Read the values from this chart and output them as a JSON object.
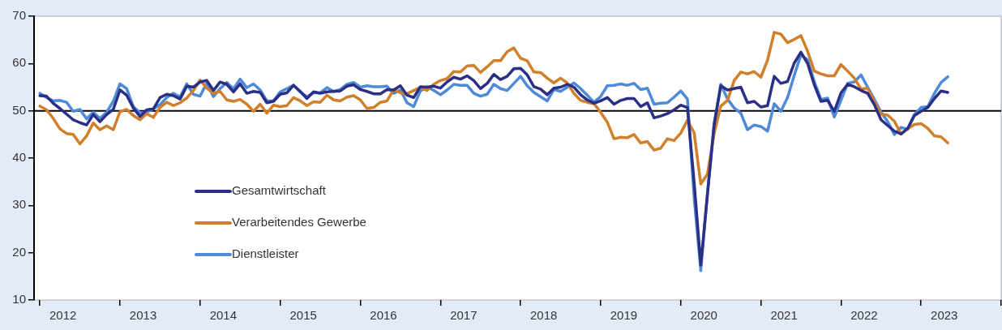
{
  "chart_data": {
    "type": "line",
    "xlim": [
      "2011-12-05",
      "2024-01-01"
    ],
    "ylim": [
      10,
      70
    ],
    "yticks": [
      10,
      20,
      30,
      40,
      50,
      60,
      70
    ],
    "xticks": [
      {
        "value": "2012-01-01",
        "label": null
      },
      {
        "value": "2012-04-15",
        "label": "2012"
      },
      {
        "value": "2013-01-01",
        "label": null
      },
      {
        "value": "2013-04-15",
        "label": "2013"
      },
      {
        "value": "2014-01-01",
        "label": null
      },
      {
        "value": "2014-04-15",
        "label": "2014"
      },
      {
        "value": "2015-01-01",
        "label": null
      },
      {
        "value": "2015-04-15",
        "label": "2015"
      },
      {
        "value": "2016-01-01",
        "label": null
      },
      {
        "value": "2016-04-15",
        "label": "2016"
      },
      {
        "value": "2017-01-01",
        "label": null
      },
      {
        "value": "2017-04-15",
        "label": "2017"
      },
      {
        "value": "2018-01-01",
        "label": null
      },
      {
        "value": "2018-04-15",
        "label": "2018"
      },
      {
        "value": "2019-01-01",
        "label": null
      },
      {
        "value": "2019-04-15",
        "label": "2019"
      },
      {
        "value": "2020-01-01",
        "label": null
      },
      {
        "value": "2020-04-15",
        "label": "2020"
      },
      {
        "value": "2021-01-01",
        "label": null
      },
      {
        "value": "2021-04-15",
        "label": "2021"
      },
      {
        "value": "2022-01-01",
        "label": null
      },
      {
        "value": "2022-04-15",
        "label": "2022"
      },
      {
        "value": "2023-01-01",
        "label": null
      },
      {
        "value": "2023-04-15",
        "label": "2023"
      },
      {
        "value": "2024-01-01",
        "label": null
      }
    ],
    "grid": false,
    "legend": "bottom left",
    "marker": "none",
    "line_style": "solid",
    "ref_lines": [
      {
        "axis": "y",
        "value": 50,
        "color": "#000000"
      }
    ],
    "series": [
      {
        "name": "Gesamtwirtschaft",
        "color": "#2b2f86",
        "values": [
          53.2,
          53.1,
          51.6,
          50.5,
          49.3,
          48.1,
          47.5,
          47.0,
          49.2,
          47.7,
          49.2,
          50.3,
          54.4,
          53.3,
          50.6,
          48.8,
          50.2,
          50.4,
          52.8,
          53.5,
          53.2,
          52.5,
          55.2,
          55.0,
          56.1,
          56.4,
          54.3,
          56.1,
          55.6,
          54.0,
          55.7,
          53.7,
          54.1,
          53.9,
          51.7,
          52.0,
          53.5,
          53.8,
          55.4,
          54.1,
          52.6,
          54.0,
          53.7,
          54.0,
          54.1,
          54.2,
          55.2,
          55.5,
          54.5,
          54.1,
          53.6,
          53.6,
          54.5,
          54.4,
          55.3,
          53.3,
          52.8,
          55.1,
          55.0,
          55.2,
          54.8,
          56.1,
          57.1,
          56.7,
          57.4,
          56.4,
          54.7,
          55.8,
          57.7,
          56.6,
          57.3,
          58.9,
          59.0,
          57.6,
          55.1,
          54.6,
          53.4,
          54.8,
          55.0,
          55.6,
          55.0,
          53.4,
          52.3,
          51.6,
          52.1,
          52.8,
          51.4,
          52.2,
          52.6,
          52.6,
          50.9,
          51.7,
          48.5,
          48.9,
          49.4,
          50.2,
          51.2,
          50.7,
          35.0,
          17.4,
          32.3,
          47.0,
          55.3,
          54.4,
          54.7,
          55.0,
          51.7,
          52.0,
          50.8,
          51.1,
          57.3,
          55.8,
          56.2,
          60.1,
          62.4,
          60.0,
          55.5,
          52.0,
          52.2,
          49.9,
          53.8,
          55.6,
          55.1,
          54.3,
          53.7,
          51.3,
          48.1,
          46.9,
          45.7,
          45.1,
          46.3,
          49.0,
          49.9,
          50.7,
          52.6,
          54.2,
          53.9
        ]
      },
      {
        "name": "Verarbeitendes Gewerbe",
        "color": "#d07f2a",
        "values": [
          51.0,
          50.2,
          48.4,
          46.2,
          45.2,
          45.0,
          43.0,
          44.7,
          47.4,
          46.0,
          46.8,
          46.0,
          49.8,
          50.3,
          49.0,
          48.1,
          49.4,
          48.6,
          50.7,
          51.8,
          51.1,
          51.7,
          52.7,
          54.3,
          56.5,
          54.8,
          53.7,
          54.1,
          52.3,
          52.0,
          52.4,
          51.4,
          49.9,
          51.4,
          49.5,
          51.2,
          50.9,
          51.1,
          52.8,
          52.1,
          51.1,
          51.9,
          51.8,
          53.3,
          52.3,
          52.1,
          52.9,
          53.2,
          52.3,
          50.5,
          50.7,
          51.8,
          52.1,
          54.5,
          53.8,
          53.6,
          54.3,
          55.0,
          54.3,
          55.6,
          56.4,
          56.8,
          58.3,
          58.2,
          59.5,
          59.6,
          58.1,
          59.3,
          60.6,
          60.6,
          62.5,
          63.3,
          61.1,
          60.6,
          58.2,
          58.1,
          56.9,
          55.9,
          56.9,
          55.9,
          53.7,
          52.2,
          51.8,
          51.5,
          49.7,
          47.6,
          44.1,
          44.4,
          44.3,
          45.0,
          43.2,
          43.5,
          41.7,
          42.1,
          44.1,
          43.7,
          45.3,
          48.0,
          45.4,
          34.5,
          36.6,
          45.2,
          51.0,
          52.2,
          56.4,
          58.2,
          57.8,
          58.3,
          57.1,
          60.7,
          66.6,
          66.2,
          64.4,
          65.1,
          65.9,
          62.6,
          58.4,
          57.8,
          57.4,
          57.4,
          59.8,
          58.4,
          56.9,
          54.6,
          54.8,
          52.0,
          49.3,
          49.1,
          47.8,
          45.1,
          46.2,
          47.1,
          47.3,
          46.3,
          44.7,
          44.5,
          43.2
        ]
      },
      {
        "name": "Dienstleister",
        "color": "#4d8ad8",
        "values": [
          53.7,
          52.8,
          52.1,
          52.2,
          51.8,
          49.9,
          50.3,
          48.3,
          49.7,
          48.4,
          49.7,
          52.0,
          55.7,
          54.7,
          50.9,
          49.6,
          49.7,
          50.4,
          51.3,
          52.8,
          53.7,
          52.9,
          55.7,
          53.5,
          53.1,
          55.9,
          53.0,
          54.7,
          56.0,
          54.6,
          56.7,
          54.9,
          55.7,
          54.4,
          52.1,
          52.1,
          54.0,
          54.7,
          55.4,
          54.0,
          53.0,
          53.8,
          53.8,
          54.9,
          54.1,
          54.5,
          55.6,
          56.0,
          55.0,
          55.3,
          55.1,
          55.1,
          55.2,
          53.7,
          54.4,
          51.7,
          50.9,
          54.2,
          55.1,
          54.3,
          53.4,
          54.4,
          55.6,
          55.4,
          55.4,
          53.7,
          53.1,
          53.5,
          55.6,
          54.7,
          54.3,
          55.8,
          57.3,
          55.3,
          53.9,
          53.0,
          52.1,
          54.5,
          54.1,
          55.0,
          55.9,
          54.7,
          53.3,
          51.8,
          53.0,
          55.3,
          55.4,
          55.7,
          55.4,
          55.8,
          54.5,
          54.8,
          51.4,
          51.6,
          51.7,
          52.9,
          54.2,
          52.5,
          31.7,
          16.2,
          32.6,
          47.3,
          55.6,
          52.5,
          50.6,
          49.5,
          46.0,
          47.0,
          46.7,
          45.7,
          51.5,
          49.9,
          52.8,
          57.5,
          61.8,
          60.8,
          56.2,
          52.4,
          52.7,
          48.7,
          52.2,
          55.8,
          56.1,
          57.6,
          55.0,
          52.4,
          49.7,
          47.7,
          45.0,
          46.5,
          46.1,
          49.2,
          50.7,
          50.9,
          53.7,
          56.0,
          57.2
        ]
      }
    ],
    "x": [
      "2012-01",
      "2012-02",
      "2012-03",
      "2012-04",
      "2012-05",
      "2012-06",
      "2012-07",
      "2012-08",
      "2012-09",
      "2012-10",
      "2012-11",
      "2012-12",
      "2013-01",
      "2013-02",
      "2013-03",
      "2013-04",
      "2013-05",
      "2013-06",
      "2013-07",
      "2013-08",
      "2013-09",
      "2013-10",
      "2013-11",
      "2013-12",
      "2014-01",
      "2014-02",
      "2014-03",
      "2014-04",
      "2014-05",
      "2014-06",
      "2014-07",
      "2014-08",
      "2014-09",
      "2014-10",
      "2014-11",
      "2014-12",
      "2015-01",
      "2015-02",
      "2015-03",
      "2015-04",
      "2015-05",
      "2015-06",
      "2015-07",
      "2015-08",
      "2015-09",
      "2015-10",
      "2015-11",
      "2015-12",
      "2016-01",
      "2016-02",
      "2016-03",
      "2016-04",
      "2016-05",
      "2016-06",
      "2016-07",
      "2016-08",
      "2016-09",
      "2016-10",
      "2016-11",
      "2016-12",
      "2017-01",
      "2017-02",
      "2017-03",
      "2017-04",
      "2017-05",
      "2017-06",
      "2017-07",
      "2017-08",
      "2017-09",
      "2017-10",
      "2017-11",
      "2017-12",
      "2018-01",
      "2018-02",
      "2018-03",
      "2018-04",
      "2018-05",
      "2018-06",
      "2018-07",
      "2018-08",
      "2018-09",
      "2018-10",
      "2018-11",
      "2018-12",
      "2019-01",
      "2019-02",
      "2019-03",
      "2019-04",
      "2019-05",
      "2019-06",
      "2019-07",
      "2019-08",
      "2019-09",
      "2019-10",
      "2019-11",
      "2019-12",
      "2020-01",
      "2020-02",
      "2020-03",
      "2020-04",
      "2020-05",
      "2020-06",
      "2020-07",
      "2020-08",
      "2020-09",
      "2020-10",
      "2020-11",
      "2020-12",
      "2021-01",
      "2021-02",
      "2021-03",
      "2021-04",
      "2021-05",
      "2021-06",
      "2021-07",
      "2021-08",
      "2021-09",
      "2021-10",
      "2021-11",
      "2021-12",
      "2022-01",
      "2022-02",
      "2022-03",
      "2022-04",
      "2022-05",
      "2022-06",
      "2022-07",
      "2022-08",
      "2022-09",
      "2022-10",
      "2022-11",
      "2022-12",
      "2023-01",
      "2023-02",
      "2023-03",
      "2023-04",
      "2023-05"
    ]
  }
}
